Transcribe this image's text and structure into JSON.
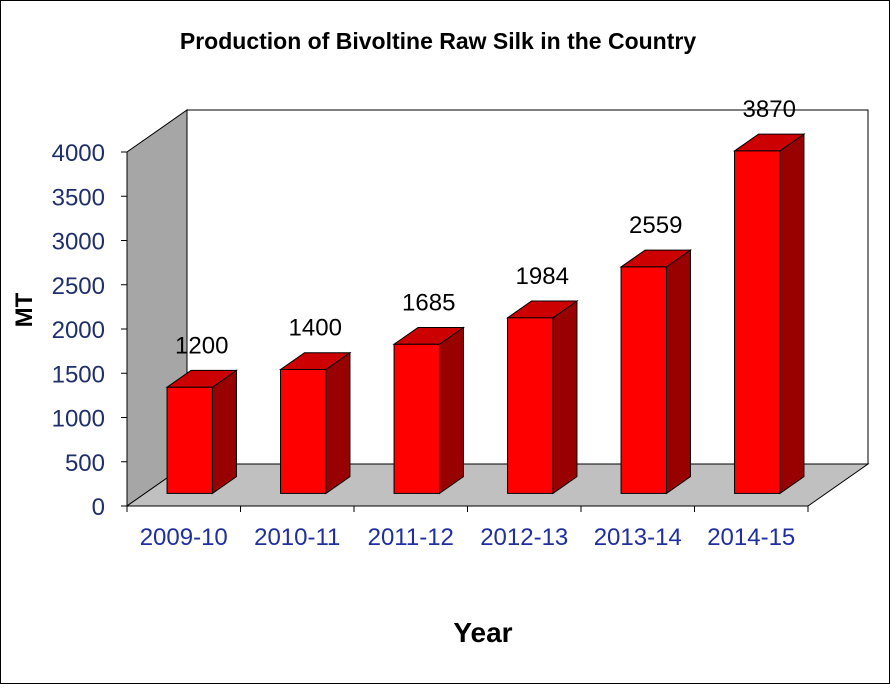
{
  "chart_data": {
    "type": "bar",
    "style": "3d-column",
    "title": "Production of Bivoltine Raw Silk in the Country",
    "xlabel": "Year",
    "ylabel": "MT",
    "categories": [
      "2009-10",
      "2010-11",
      "2011-12",
      "2012-13",
      "2013-14",
      "2014-15"
    ],
    "series": [
      {
        "values": [
          1200,
          1400,
          1685,
          1984,
          2559,
          3870
        ]
      }
    ],
    "data_labels": [
      "1200",
      "1400",
      "1685",
      "1984",
      "2559",
      "3870"
    ],
    "yticks": [
      "0",
      "500",
      "1000",
      "1500",
      "2000",
      "2500",
      "3000",
      "3500",
      "4000"
    ],
    "ylim": [
      0,
      4000
    ],
    "grid": false,
    "legend": "none",
    "colors": {
      "bar_front": "#ff0000",
      "bar_top": "#cc0000",
      "bar_side": "#990000",
      "floor": "#c0c0c0",
      "back_wall": "#ffffff",
      "side_wall": "#a6a6a6",
      "tick_label": "#1f2f6b",
      "category_label": "#1f2fa0",
      "axis_title": "#000000"
    }
  }
}
